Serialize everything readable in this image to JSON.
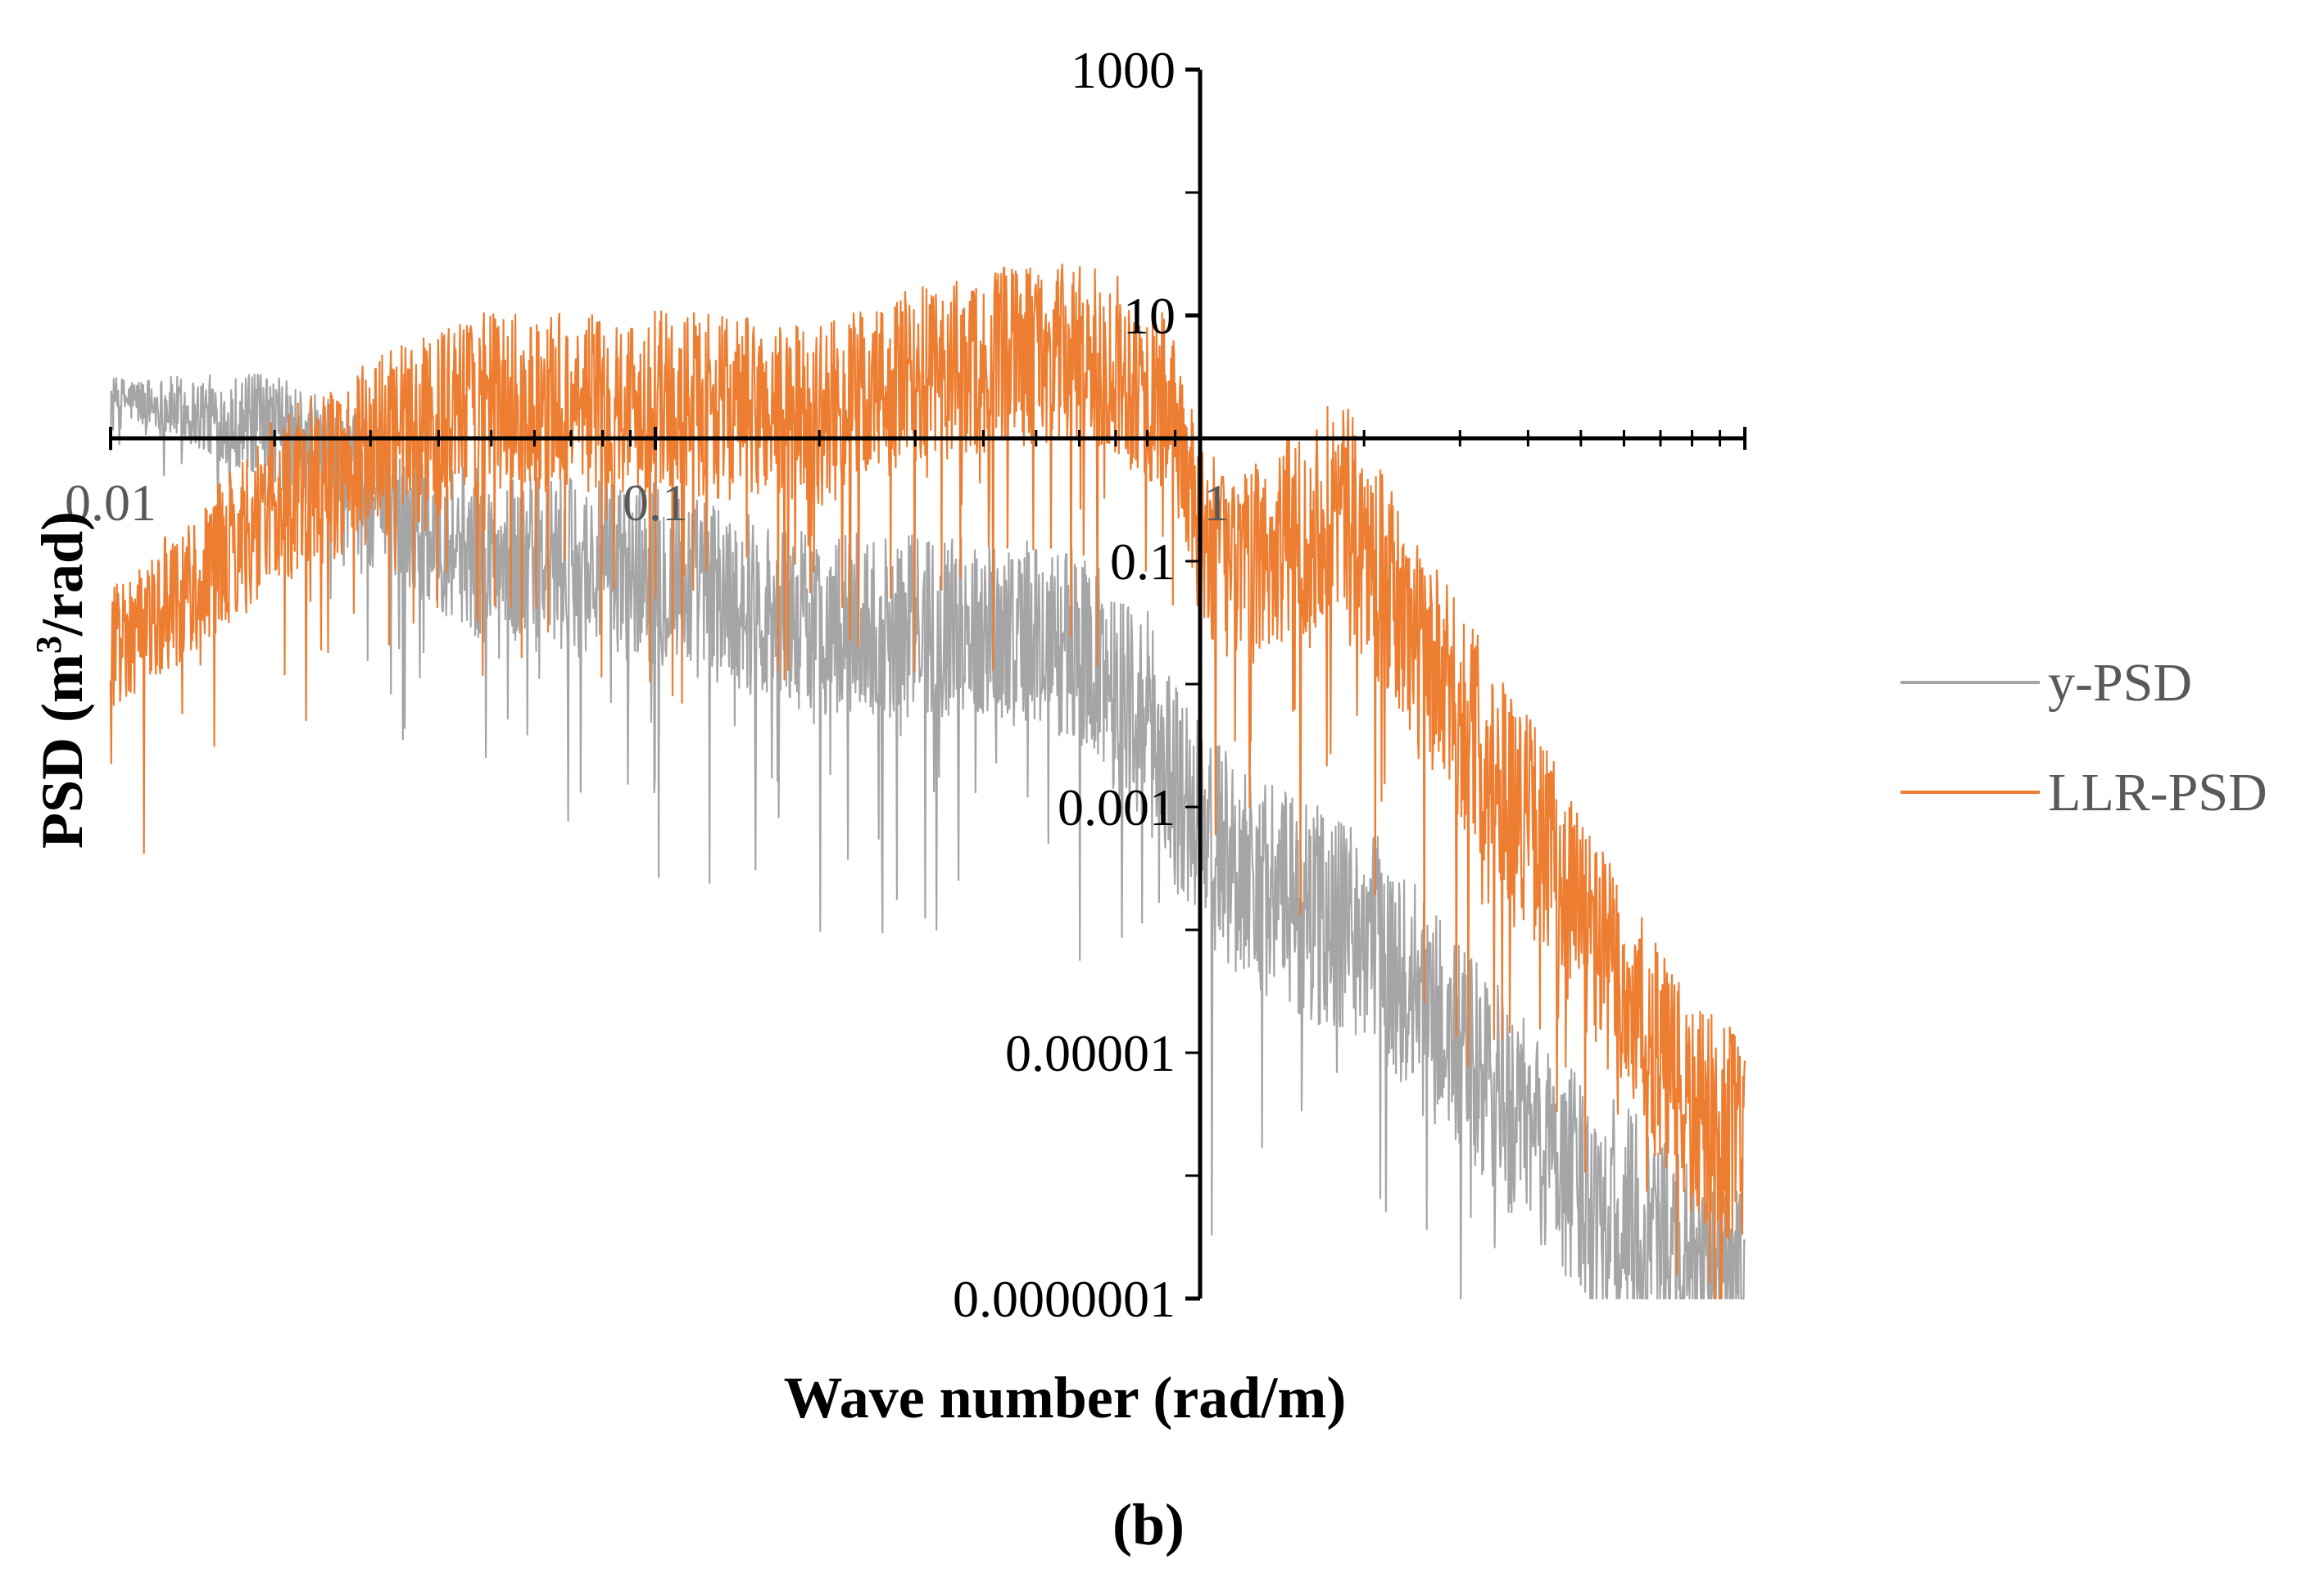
{
  "chart_data": {
    "type": "line",
    "panel_label": "(b)",
    "title": "",
    "xlabel": "Wave number (rad/m)",
    "ylabel_main": "PSD (m",
    "ylabel_sup": "3",
    "ylabel_tail": "/rad)",
    "x_scale": "log",
    "y_scale": "log",
    "xlim": [
      0.01,
      10
    ],
    "ylim": [
      1e-07,
      1000
    ],
    "x_axis_crosses_y_at": 1,
    "y_axis_crosses_x_at": 1,
    "x_ticks": [
      {
        "value": 0.01,
        "label": "0.01"
      },
      {
        "value": 0.1,
        "label": "0.1"
      },
      {
        "value": 1,
        "label": "1"
      }
    ],
    "y_ticks": [
      {
        "value": 1000,
        "label": "1000"
      },
      {
        "value": 10,
        "label": "10"
      },
      {
        "value": 0.1,
        "label": "0.1"
      },
      {
        "value": 0.001,
        "label": "0.001"
      },
      {
        "value": 1e-05,
        "label": "0.00001"
      },
      {
        "value": 1e-07,
        "label": "0.0000001"
      }
    ],
    "legend_position": "right",
    "grid": false,
    "series": [
      {
        "name": "y-PSD",
        "color": "#A5A5A5",
        "trend": [
          {
            "x": 0.01,
            "y": 2.2
          },
          {
            "x": 0.02,
            "y": 1.2
          },
          {
            "x": 0.03,
            "y": 0.35
          },
          {
            "x": 0.05,
            "y": 0.1
          },
          {
            "x": 0.1,
            "y": 0.08
          },
          {
            "x": 0.2,
            "y": 0.03
          },
          {
            "x": 0.4,
            "y": 0.03
          },
          {
            "x": 0.6,
            "y": 0.02
          },
          {
            "x": 0.8,
            "y": 0.005
          },
          {
            "x": 1.0,
            "y": 0.0006
          },
          {
            "x": 1.5,
            "y": 0.00015
          },
          {
            "x": 2.0,
            "y": 0.0001
          },
          {
            "x": 3.0,
            "y": 1e-05
          },
          {
            "x": 5.0,
            "y": 8e-07
          },
          {
            "x": 10.0,
            "y": 1e-07
          }
        ],
        "spread_decades": [
          0.15,
          0.45,
          0.6,
          0.7,
          0.75,
          0.75,
          0.75,
          0.8,
          0.9,
          0.9,
          0.9,
          0.9,
          0.9,
          0.9,
          0.9
        ]
      },
      {
        "name": "LLR-PSD",
        "color": "#ED7D31",
        "trend": [
          {
            "x": 0.01,
            "y": 0.02
          },
          {
            "x": 0.015,
            "y": 0.08
          },
          {
            "x": 0.02,
            "y": 0.3
          },
          {
            "x": 0.03,
            "y": 0.8
          },
          {
            "x": 0.05,
            "y": 2.0
          },
          {
            "x": 0.1,
            "y": 2.0
          },
          {
            "x": 0.2,
            "y": 1.5
          },
          {
            "x": 0.3,
            "y": 3.0
          },
          {
            "x": 0.5,
            "y": 5.0
          },
          {
            "x": 0.7,
            "y": 4.0
          },
          {
            "x": 0.9,
            "y": 1.5
          },
          {
            "x": 1.0,
            "y": 0.15
          },
          {
            "x": 1.2,
            "y": 0.08
          },
          {
            "x": 1.8,
            "y": 0.3
          },
          {
            "x": 2.5,
            "y": 0.02
          },
          {
            "x": 4.0,
            "y": 0.0008
          },
          {
            "x": 6.0,
            "y": 3e-05
          },
          {
            "x": 8.0,
            "y": 3e-06
          },
          {
            "x": 10.0,
            "y": 2e-06
          }
        ],
        "spread_decades": [
          0.5,
          0.6,
          0.7,
          0.75,
          0.75,
          0.75,
          0.75,
          0.75,
          0.75,
          0.75,
          0.75,
          0.75,
          0.8,
          0.9,
          0.9,
          0.9,
          0.9,
          0.9,
          0.9
        ]
      }
    ]
  }
}
